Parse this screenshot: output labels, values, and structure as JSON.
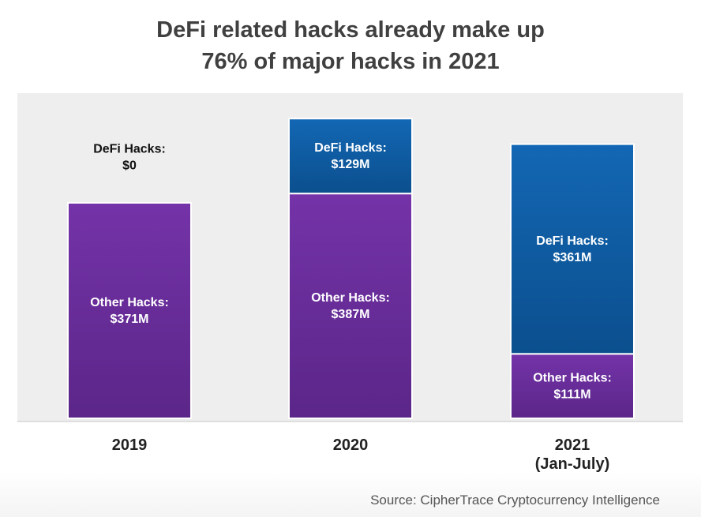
{
  "title_line1": "DeFi related hacks already make up",
  "title_line2": "76% of major hacks in 2021",
  "source": "Source: CipherTrace Cryptocurrency Intelligence",
  "colors": {
    "other": "#6b2fa0",
    "defi": "#0f5fa8",
    "plot_bg": "#eeeeee"
  },
  "chart_data": {
    "type": "bar",
    "stacked": true,
    "categories": [
      "2019",
      "2020",
      "2021\n(Jan-July)"
    ],
    "category_label_lines": [
      [
        "2019"
      ],
      [
        "2020"
      ],
      [
        "2021",
        "(Jan-July)"
      ]
    ],
    "series": [
      {
        "name": "Other Hacks",
        "values": [
          371,
          387,
          111
        ],
        "labels": [
          "Other Hacks:|$371M",
          "Other Hacks:|$387M",
          "Other Hacks:|$111M"
        ]
      },
      {
        "name": "DeFi Hacks",
        "values": [
          0,
          129,
          361
        ],
        "labels": [
          "DeFi Hacks:|$0",
          "DeFi Hacks:|$129M",
          "DeFi Hacks:|$361M"
        ]
      }
    ],
    "unit": "$M",
    "ylim": [
      0,
      525
    ],
    "grid": false,
    "legend": "none"
  }
}
